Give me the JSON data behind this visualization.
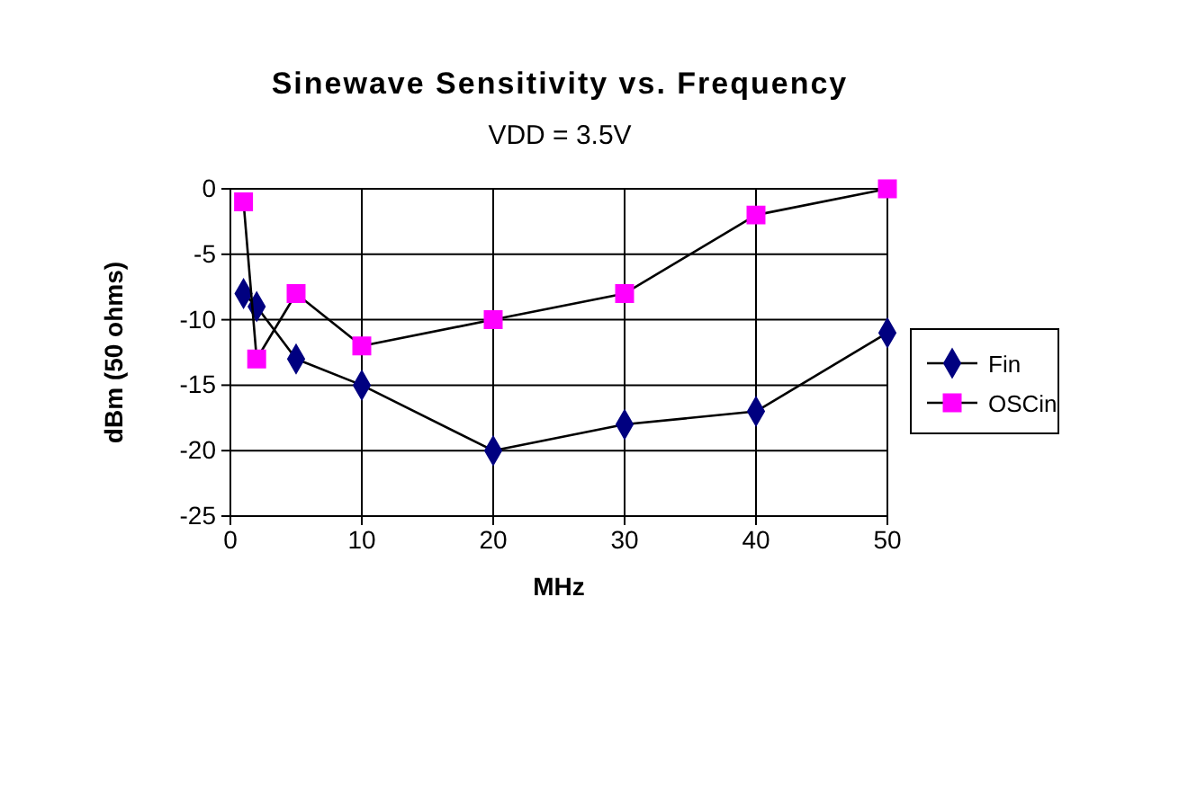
{
  "chart_data": {
    "type": "line",
    "title": "Sinewave Sensitivity vs. Frequency",
    "subtitle": "VDD = 3.5V",
    "xlabel": "MHz",
    "ylabel": "dBm (50 ohms)",
    "xlim": [
      0,
      50
    ],
    "xticks": [
      0,
      10,
      20,
      30,
      40,
      50
    ],
    "ylim": [
      -25,
      0
    ],
    "yticks": [
      -25,
      -20,
      -15,
      -10,
      -5,
      0
    ],
    "grid": true,
    "legend": "right",
    "series": [
      {
        "name": "Fin",
        "color": "#000080",
        "marker": "diamond",
        "x": [
          1,
          2,
          5,
          10,
          20,
          30,
          40,
          50
        ],
        "values": [
          -8,
          -9,
          -13,
          -15,
          -20,
          -18,
          -17,
          -11
        ]
      },
      {
        "name": "OSCin",
        "color": "#ff00ff",
        "marker": "square",
        "x": [
          1,
          2,
          5,
          10,
          20,
          30,
          40,
          50
        ],
        "values": [
          -1,
          -13,
          -8,
          -12,
          -10,
          -8,
          -2,
          0
        ]
      }
    ]
  }
}
